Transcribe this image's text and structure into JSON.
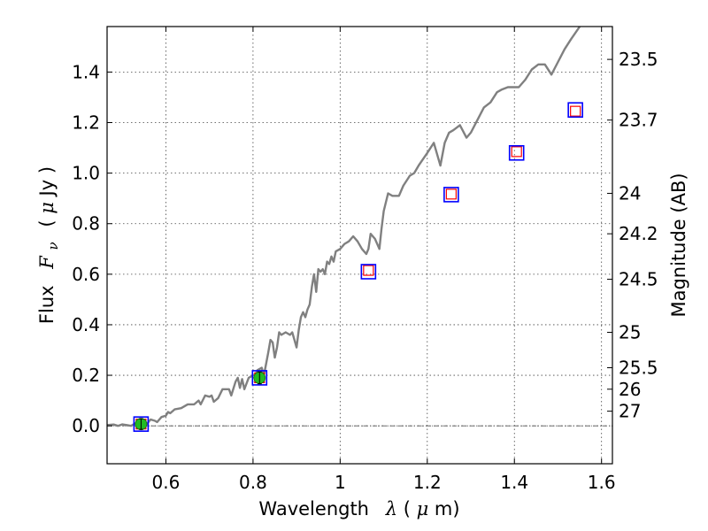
{
  "chart_data": {
    "type": "line",
    "xlabel": {
      "text": "Wavelength",
      "symbol": "λ",
      "unit_open": " (",
      "unit_math": "μ",
      "unit_rest": "m)"
    },
    "ylabel": {
      "text": "Flux",
      "symbol": "F",
      "subscript": "ν",
      "unit_open": "( ",
      "unit_math": "μ",
      "unit_rest": "Jy )"
    },
    "ylabel_right": "Magnitude (AB)",
    "xlim": [
      0.465,
      1.625
    ],
    "ylim": [
      -0.15,
      1.58
    ],
    "grid": true,
    "x_ticks": [
      0.6,
      0.8,
      1.0,
      1.2,
      1.4,
      1.6
    ],
    "x_tick_labels": [
      "0.6",
      "0.8",
      "1",
      "1.2",
      "1.4",
      "1.6"
    ],
    "y_ticks": [
      0.0,
      0.2,
      0.4,
      0.6,
      0.8,
      1.0,
      1.2,
      1.4
    ],
    "y_tick_labels": [
      "0.0",
      "0.2",
      "0.4",
      "0.6",
      "0.8",
      "1.0",
      "1.2",
      "1.4"
    ],
    "right_ticks": [
      {
        "label": "23.5",
        "flux": 1.45
      },
      {
        "label": "23.7",
        "flux": 1.21
      },
      {
        "label": "24",
        "flux": 0.92
      },
      {
        "label": "24.2",
        "flux": 0.76
      },
      {
        "label": "24.5",
        "flux": 0.58
      },
      {
        "label": "25",
        "flux": 0.37
      },
      {
        "label": "25.5",
        "flux": 0.23
      },
      {
        "label": "26",
        "flux": 0.145
      },
      {
        "label": "27",
        "flux": 0.058
      }
    ],
    "zero_line": 0.0,
    "series": [
      {
        "type": "spectrum",
        "color": "#808080",
        "points": [
          [
            0.465,
            0.003
          ],
          [
            0.48,
            0.005
          ],
          [
            0.49,
            0.0
          ],
          [
            0.5,
            0.006
          ],
          [
            0.51,
            0.003
          ],
          [
            0.52,
            0.0
          ],
          [
            0.53,
            0.01
          ],
          [
            0.545,
            0.015
          ],
          [
            0.555,
            0.005
          ],
          [
            0.565,
            0.025
          ],
          [
            0.575,
            0.02
          ],
          [
            0.58,
            0.015
          ],
          [
            0.59,
            0.035
          ],
          [
            0.6,
            0.04
          ],
          [
            0.605,
            0.055
          ],
          [
            0.61,
            0.05
          ],
          [
            0.62,
            0.065
          ],
          [
            0.635,
            0.07
          ],
          [
            0.65,
            0.085
          ],
          [
            0.665,
            0.085
          ],
          [
            0.675,
            0.1
          ],
          [
            0.68,
            0.085
          ],
          [
            0.69,
            0.12
          ],
          [
            0.7,
            0.115
          ],
          [
            0.705,
            0.12
          ],
          [
            0.71,
            0.095
          ],
          [
            0.72,
            0.11
          ],
          [
            0.73,
            0.145
          ],
          [
            0.745,
            0.145
          ],
          [
            0.75,
            0.12
          ],
          [
            0.76,
            0.175
          ],
          [
            0.765,
            0.19
          ],
          [
            0.77,
            0.15
          ],
          [
            0.775,
            0.185
          ],
          [
            0.78,
            0.145
          ],
          [
            0.79,
            0.19
          ],
          [
            0.8,
            0.2
          ],
          [
            0.805,
            0.2
          ],
          [
            0.81,
            0.22
          ],
          [
            0.815,
            0.225
          ],
          [
            0.82,
            0.23
          ],
          [
            0.825,
            0.2
          ],
          [
            0.835,
            0.29
          ],
          [
            0.84,
            0.34
          ],
          [
            0.845,
            0.33
          ],
          [
            0.85,
            0.27
          ],
          [
            0.855,
            0.31
          ],
          [
            0.86,
            0.37
          ],
          [
            0.865,
            0.36
          ],
          [
            0.875,
            0.37
          ],
          [
            0.885,
            0.36
          ],
          [
            0.89,
            0.37
          ],
          [
            0.895,
            0.34
          ],
          [
            0.9,
            0.31
          ],
          [
            0.905,
            0.38
          ],
          [
            0.91,
            0.43
          ],
          [
            0.915,
            0.45
          ],
          [
            0.92,
            0.43
          ],
          [
            0.925,
            0.46
          ],
          [
            0.93,
            0.48
          ],
          [
            0.935,
            0.55
          ],
          [
            0.94,
            0.6
          ],
          [
            0.945,
            0.53
          ],
          [
            0.95,
            0.62
          ],
          [
            0.955,
            0.61
          ],
          [
            0.96,
            0.62
          ],
          [
            0.965,
            0.6
          ],
          [
            0.97,
            0.65
          ],
          [
            0.975,
            0.64
          ],
          [
            0.98,
            0.67
          ],
          [
            0.985,
            0.65
          ],
          [
            0.99,
            0.69
          ],
          [
            1.0,
            0.7
          ],
          [
            1.01,
            0.72
          ],
          [
            1.02,
            0.73
          ],
          [
            1.03,
            0.75
          ],
          [
            1.04,
            0.73
          ],
          [
            1.05,
            0.7
          ],
          [
            1.06,
            0.68
          ],
          [
            1.065,
            0.7
          ],
          [
            1.07,
            0.76
          ],
          [
            1.08,
            0.74
          ],
          [
            1.09,
            0.7
          ],
          [
            1.095,
            0.78
          ],
          [
            1.1,
            0.85
          ],
          [
            1.11,
            0.92
          ],
          [
            1.12,
            0.91
          ],
          [
            1.135,
            0.91
          ],
          [
            1.145,
            0.95
          ],
          [
            1.16,
            0.99
          ],
          [
            1.17,
            1.0
          ],
          [
            1.18,
            1.03
          ],
          [
            1.2,
            1.08
          ],
          [
            1.215,
            1.12
          ],
          [
            1.23,
            1.03
          ],
          [
            1.24,
            1.12
          ],
          [
            1.25,
            1.16
          ],
          [
            1.26,
            1.17
          ],
          [
            1.275,
            1.19
          ],
          [
            1.29,
            1.14
          ],
          [
            1.3,
            1.16
          ],
          [
            1.315,
            1.21
          ],
          [
            1.33,
            1.26
          ],
          [
            1.345,
            1.28
          ],
          [
            1.36,
            1.32
          ],
          [
            1.37,
            1.33
          ],
          [
            1.385,
            1.34
          ],
          [
            1.41,
            1.34
          ],
          [
            1.425,
            1.37
          ],
          [
            1.44,
            1.41
          ],
          [
            1.455,
            1.43
          ],
          [
            1.47,
            1.43
          ],
          [
            1.485,
            1.39
          ],
          [
            1.5,
            1.44
          ],
          [
            1.515,
            1.49
          ],
          [
            1.53,
            1.53
          ],
          [
            1.55,
            1.58
          ]
        ]
      },
      {
        "type": "model-photometry",
        "color": "#ff0000",
        "points": [
          [
            0.543,
            0.007
          ],
          [
            0.815,
            0.19
          ],
          [
            1.065,
            0.615
          ],
          [
            1.255,
            0.917
          ],
          [
            1.405,
            1.085
          ],
          [
            1.54,
            1.245
          ]
        ]
      },
      {
        "type": "observed-photometry",
        "color": "#0000ff",
        "points": [
          [
            0.543,
            0.007
          ],
          [
            0.815,
            0.19
          ],
          [
            1.065,
            0.61
          ],
          [
            1.255,
            0.915
          ],
          [
            1.405,
            1.08
          ],
          [
            1.54,
            1.25
          ]
        ]
      },
      {
        "type": "detections",
        "color": "#22bb22",
        "points": [
          {
            "x": 0.543,
            "y": 0.007,
            "err": 0.012
          },
          {
            "x": 0.815,
            "y": 0.19,
            "err": 0.015
          }
        ]
      }
    ]
  }
}
